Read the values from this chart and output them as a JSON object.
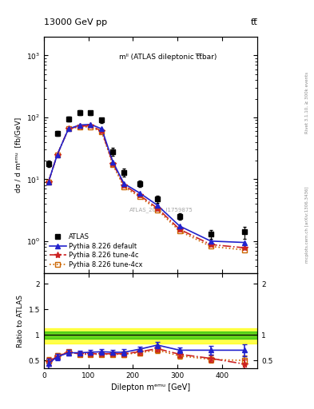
{
  "title_left": "13000 GeV pp",
  "title_right": "tt̅",
  "annotation": "mˡˡ (ATLAS dileptonic t̅t̅bar)",
  "watermark": "ATLAS_2019_I1759875",
  "right_label_top": "Rivet 3.1.10, ≥ 300k events",
  "right_label_bot": "mcplots.cern.ch [arXiv:1306.3436]",
  "xlabel": "Dilepton mᵉᵐᵘ [GeV]",
  "ylabel": "dσ / d mᵉᵐᵘ  [fb/GeV]",
  "ratio_ylabel": "Ratio to ATLAS",
  "xlim": [
    0,
    480
  ],
  "ylim_log": [
    0.3,
    2000
  ],
  "ylim_ratio": [
    0.35,
    2.2
  ],
  "atlas_x": [
    10,
    30,
    55,
    80,
    105,
    130,
    155,
    180,
    215,
    255,
    305,
    375,
    450
  ],
  "atlas_y": [
    18,
    55,
    95,
    120,
    118,
    90,
    28,
    13,
    8.5,
    4.8,
    2.5,
    1.3,
    1.4
  ],
  "atlas_yerr": [
    2,
    5,
    8,
    10,
    10,
    8,
    4,
    2,
    1.0,
    0.6,
    0.3,
    0.2,
    0.3
  ],
  "py_default_x": [
    10,
    30,
    55,
    80,
    105,
    130,
    155,
    180,
    215,
    255,
    305,
    375,
    450
  ],
  "py_default_y": [
    9,
    25,
    65,
    75,
    77,
    65,
    19,
    8.5,
    6.0,
    3.8,
    1.75,
    1.0,
    0.95
  ],
  "py_4c_x": [
    10,
    30,
    55,
    80,
    105,
    130,
    155,
    180,
    215,
    255,
    305,
    375,
    450
  ],
  "py_4c_y": [
    9,
    25,
    65,
    72,
    73,
    60,
    18,
    8.0,
    5.5,
    3.4,
    1.55,
    0.88,
    0.78
  ],
  "py_4cx_x": [
    10,
    30,
    55,
    80,
    105,
    130,
    155,
    180,
    215,
    255,
    305,
    375,
    450
  ],
  "py_4cx_y": [
    9,
    25,
    65,
    70,
    70,
    58,
    17,
    7.5,
    5.2,
    3.2,
    1.45,
    0.82,
    0.72
  ],
  "ratio_default_x": [
    10,
    30,
    55,
    80,
    105,
    130,
    155,
    180,
    215,
    255,
    305,
    375,
    450
  ],
  "ratio_default_y": [
    0.44,
    0.57,
    0.65,
    0.65,
    0.66,
    0.67,
    0.66,
    0.66,
    0.72,
    0.8,
    0.7,
    0.7,
    0.7
  ],
  "ratio_default_err": [
    0.1,
    0.06,
    0.05,
    0.04,
    0.04,
    0.05,
    0.05,
    0.06,
    0.05,
    0.06,
    0.06,
    0.09,
    0.12
  ],
  "ratio_4c_x": [
    10,
    30,
    55,
    80,
    105,
    130,
    155,
    180,
    215,
    255,
    305,
    375,
    450
  ],
  "ratio_4c_y": [
    0.47,
    0.58,
    0.66,
    0.63,
    0.63,
    0.63,
    0.63,
    0.63,
    0.67,
    0.73,
    0.62,
    0.54,
    0.43
  ],
  "ratio_4c_err": [
    0.08,
    0.05,
    0.04,
    0.04,
    0.04,
    0.04,
    0.04,
    0.05,
    0.05,
    0.05,
    0.05,
    0.07,
    0.09
  ],
  "ratio_4cx_x": [
    10,
    30,
    55,
    80,
    105,
    130,
    155,
    180,
    215,
    255,
    305,
    375,
    450
  ],
  "ratio_4cx_y": [
    0.49,
    0.59,
    0.67,
    0.62,
    0.62,
    0.62,
    0.62,
    0.62,
    0.65,
    0.7,
    0.59,
    0.52,
    0.5
  ],
  "ratio_4cx_err": [
    0.08,
    0.05,
    0.04,
    0.04,
    0.04,
    0.04,
    0.04,
    0.05,
    0.05,
    0.05,
    0.05,
    0.07,
    0.09
  ],
  "green_band": [
    0.93,
    1.07
  ],
  "yellow_band": [
    0.83,
    1.13
  ],
  "color_default": "#2222cc",
  "color_4c": "#cc2222",
  "color_4cx": "#cc6600",
  "color_atlas": "#000000"
}
